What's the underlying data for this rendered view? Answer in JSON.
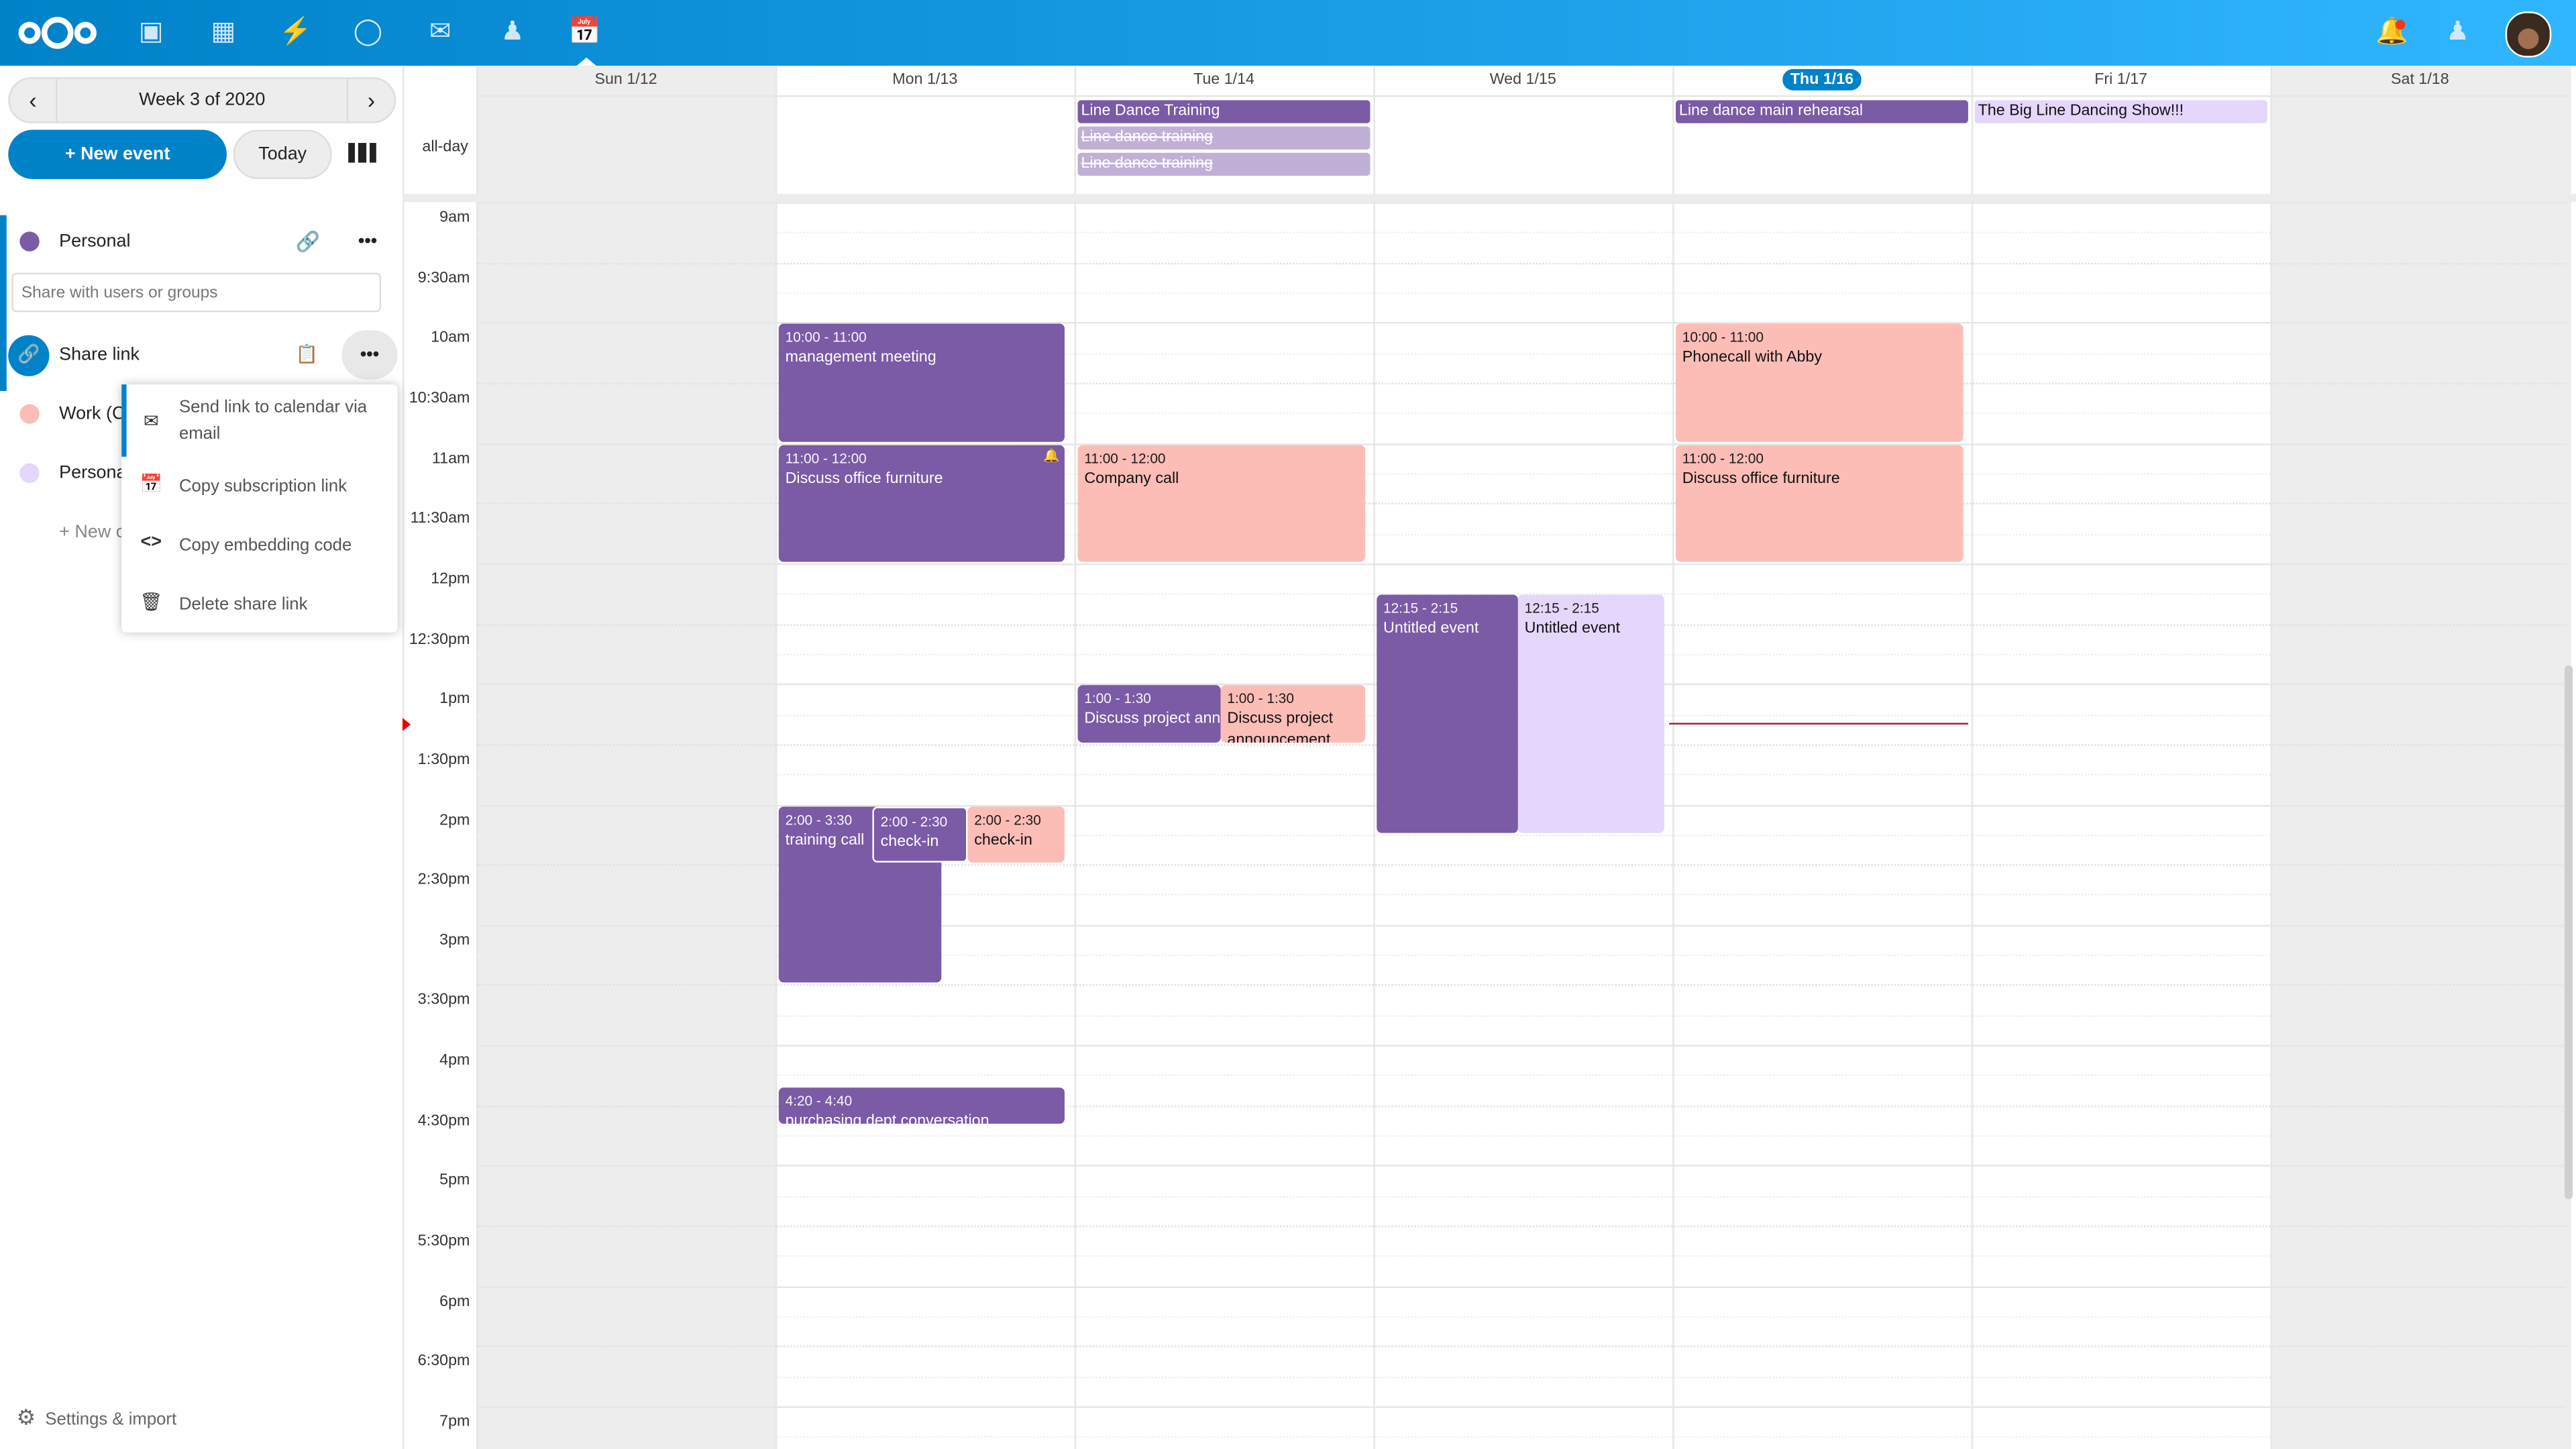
{
  "topbar": {
    "apps": [
      "logo-icon",
      "files-icon",
      "photos-icon",
      "activity-icon",
      "talk-icon",
      "mail-icon",
      "contacts-icon",
      "calendar-icon"
    ],
    "active_app": "calendar-icon",
    "right_icons": [
      "notifications-icon",
      "contacts-menu-icon",
      "user-avatar"
    ],
    "brand_color": "#0082c9"
  },
  "sidebar": {
    "week_label": "Week 3 of 2020",
    "new_event_label": "+ New event",
    "today_label": "Today",
    "calendars": [
      {
        "name": "Personal",
        "color": "#7b5aa6"
      },
      {
        "name": "Work (C",
        "color": "#fcbdb7"
      },
      {
        "name": "Persona",
        "color": "#e5d6fb"
      }
    ],
    "share_placeholder": "Share with users or groups",
    "share_link_label": "Share link",
    "new_calendar_label": "+ New c",
    "settings_label": "Settings & import",
    "menu": [
      {
        "icon": "mail-icon",
        "label": "Send link to calendar via email"
      },
      {
        "icon": "calendar-icon",
        "label": "Copy subscription link"
      },
      {
        "icon": "code-icon",
        "label": "Copy embedding code"
      },
      {
        "icon": "trash-icon",
        "label": "Delete share link"
      }
    ]
  },
  "calendar": {
    "days": [
      "Sun 1/12",
      "Mon 1/13",
      "Tue 1/14",
      "Wed 1/15",
      "Thu 1/16",
      "Fri 1/17",
      "Sat 1/18"
    ],
    "today": "Thu 1/16",
    "allday_label": "all-day",
    "times": [
      "9am",
      "9:30am",
      "10am",
      "10:30am",
      "11am",
      "11:30am",
      "12pm",
      "12:30pm",
      "1pm",
      "1:30pm",
      "2pm",
      "2:30pm",
      "3pm",
      "3:30pm",
      "4pm",
      "4:30pm",
      "5pm",
      "5:30pm",
      "6pm",
      "6:30pm",
      "7pm"
    ],
    "allday_events": [
      {
        "day": "Tue 1/14",
        "title": "Line Dance Training"
      },
      {
        "day": "Tue 1/14",
        "title": "Line dance training",
        "cancelled": true
      },
      {
        "day": "Tue 1/14",
        "title": "Line dance training",
        "cancelled": true
      },
      {
        "day": "Thu 1/16",
        "title": "Line dance main rehearsal"
      },
      {
        "day": "Fri 1/17",
        "title": "The Big Line Dancing Show!!!"
      }
    ],
    "events": [
      {
        "day": "Mon 1/13",
        "time": "10:00 - 11:00",
        "title": "management meeting"
      },
      {
        "day": "Mon 1/13",
        "time": "11:00 - 12:00",
        "title": "Discuss office furniture",
        "alarm": true
      },
      {
        "day": "Mon 1/13",
        "time": "2:00 - 3:30",
        "title": "training call"
      },
      {
        "day": "Mon 1/13",
        "time": "2:00 - 2:30",
        "title": "check-in"
      },
      {
        "day": "Mon 1/13",
        "time": "2:00 - 2:30",
        "title": "check-in"
      },
      {
        "day": "Mon 1/13",
        "time": "4:20 - 4:40",
        "title": "purchasing dept conversation"
      },
      {
        "day": "Tue 1/14",
        "time": "11:00 - 12:00",
        "title": "Company call"
      },
      {
        "day": "Tue 1/14",
        "time": "1:00 - 1:30",
        "title": "Discuss project announcement"
      },
      {
        "day": "Tue 1/14",
        "time": "1:00 - 1:30",
        "title": "Discuss project announcement"
      },
      {
        "day": "Wed 1/15",
        "time": "12:15 - 2:15",
        "title": "Untitled event"
      },
      {
        "day": "Wed 1/15",
        "time": "12:15 - 2:15",
        "title": "Untitled event"
      },
      {
        "day": "Thu 1/16",
        "time": "10:00 - 11:00",
        "title": "Phonecall with Abby"
      },
      {
        "day": "Thu 1/16",
        "time": "11:00 - 12:00",
        "title": "Discuss office furniture"
      }
    ]
  }
}
